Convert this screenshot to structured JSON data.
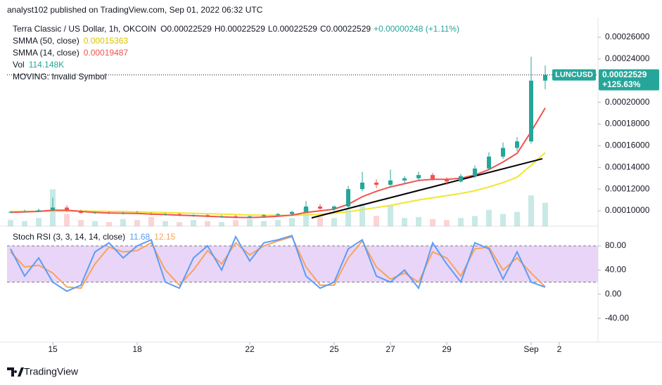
{
  "header": {
    "published": "analyst102 published on TradingView.com, Sep 01, 2022 06:32 UTC",
    "brand": "TradingView"
  },
  "chart_data": [
    {
      "type": "candlestick",
      "title": "Terra Classic / US Dollar, 1h, OKCOIN",
      "ohlc_legend": [
        {
          "label": "O",
          "value": "0.00022529"
        },
        {
          "label": "H",
          "value": "0.00022529"
        },
        {
          "label": "L",
          "value": "0.00022529"
        },
        {
          "label": "C",
          "value": "0.00022529"
        }
      ],
      "change": "+0.00000248 (+1.11%)",
      "notice": "MOVING: Invalid Symbol",
      "symbol": "LUNCUSD",
      "change_percent": "+125.63%",
      "x": [
        13.5,
        14,
        14.5,
        15,
        15.5,
        16,
        16.5,
        17,
        17.5,
        18,
        18.5,
        19,
        19.5,
        20,
        20.5,
        21,
        21.5,
        22,
        22.5,
        23,
        23.5,
        24,
        24.5,
        25,
        25.5,
        26,
        26.5,
        27,
        27.5,
        28,
        28.5,
        29,
        29.5,
        30,
        30.5,
        31,
        31.5,
        32,
        32.5
      ],
      "open": [
        9.85e-05,
        9.9e-05,
        9.95e-05,
        0.0001005,
        0.000103,
        0.0001,
        9.8e-05,
        9.85e-05,
        9.75e-05,
        9.8e-05,
        9.75e-05,
        9.65e-05,
        9.7e-05,
        9.55e-05,
        9.6e-05,
        9.45e-05,
        9.5e-05,
        9.4e-05,
        9.5e-05,
        9.6e-05,
        9.7e-05,
        9.9e-05,
        0.000104,
        0.000102,
        0.000104,
        0.00012,
        0.000126,
        0.000124,
        0.000128,
        0.00013,
        0.000133,
        0.000129,
        0.000127,
        0.000132,
        0.000139,
        0.00015,
        0.000158,
        0.000164,
        0.00022
      ],
      "high": [
        0.0001,
        0.000101,
        0.000102,
        0.000112,
        0.000105,
        0.000101,
        9.95e-05,
        9.95e-05,
        9.9e-05,
        0.0001,
        9.85e-05,
        9.8e-05,
        9.8e-05,
        9.7e-05,
        9.7e-05,
        9.6e-05,
        9.6e-05,
        9.55e-05,
        9.7e-05,
        9.8e-05,
        0.0001,
        0.000109,
        0.000106,
        0.000105,
        0.000123,
        0.000136,
        0.000129,
        0.000138,
        0.000132,
        0.000136,
        0.000135,
        0.000131,
        0.000134,
        0.000142,
        0.000154,
        0.000163,
        0.000168,
        0.000242,
        0.000234
      ],
      "low": [
        9.8e-05,
        9.85e-05,
        9.9e-05,
        9.95e-05,
        9.9e-05,
        9.75e-05,
        9.7e-05,
        9.7e-05,
        9.65e-05,
        9.7e-05,
        9.6e-05,
        9.55e-05,
        9.5e-05,
        9.45e-05,
        9.4e-05,
        9.35e-05,
        9.3e-05,
        9.3e-05,
        9.4e-05,
        9.5e-05,
        9.6e-05,
        9.8e-05,
        0.000101,
        0.0001,
        0.000103,
        0.000118,
        0.000121,
        0.000122,
        0.000125,
        0.000128,
        0.000128,
        0.000124,
        0.000126,
        0.00013,
        0.000138,
        0.000148,
        0.000155,
        0.000162,
        0.000212
      ],
      "close": [
        9.9e-05,
        9.95e-05,
        0.0001005,
        0.000103,
        0.0001,
        9.8e-05,
        9.85e-05,
        9.75e-05,
        9.8e-05,
        9.75e-05,
        9.65e-05,
        9.7e-05,
        9.55e-05,
        9.6e-05,
        9.45e-05,
        9.5e-05,
        9.4e-05,
        9.5e-05,
        9.6e-05,
        9.7e-05,
        9.9e-05,
        0.000104,
        0.000102,
        0.000104,
        0.00012,
        0.000126,
        0.000124,
        0.000128,
        0.00013,
        0.000133,
        0.000129,
        0.000127,
        0.000132,
        0.000139,
        0.00015,
        0.000158,
        0.000164,
        0.00022,
        0.00022529
      ],
      "up_color": "#26a69a",
      "down_color": "#ef5350",
      "series": [
        {
          "name": "SMMA (50, close)",
          "color": "#f2e52e",
          "values": [
            9.95e-05,
            9.95e-05,
            9.96e-05,
            9.98e-05,
            9.99e-05,
            9.98e-05,
            9.97e-05,
            9.95e-05,
            9.93e-05,
            9.9e-05,
            9.87e-05,
            9.84e-05,
            9.8e-05,
            9.77e-05,
            9.73e-05,
            9.7e-05,
            9.66e-05,
            9.62e-05,
            9.6e-05,
            9.58e-05,
            9.58e-05,
            9.62e-05,
            9.68e-05,
            9.78e-05,
            9.92e-05,
            0.000101,
            0.000103,
            0.000105,
            0.0001075,
            0.00011,
            0.000112,
            0.000114,
            0.000116,
            0.0001185,
            0.000122,
            0.000126,
            0.000131,
            0.000142,
            0.00015363
          ]
        },
        {
          "name": "SMMA (14, close)",
          "color": "#ef5350",
          "values": [
            9.85e-05,
            9.9e-05,
            9.95e-05,
            0.0001005,
            0.0001005,
            9.95e-05,
            9.85e-05,
            9.8e-05,
            9.78e-05,
            9.76e-05,
            9.7e-05,
            9.66e-05,
            9.6e-05,
            9.55e-05,
            9.5e-05,
            9.45e-05,
            9.4e-05,
            9.38e-05,
            9.42e-05,
            9.5e-05,
            9.6e-05,
            9.85e-05,
            0.0001,
            0.0001015,
            0.000106,
            0.000113,
            0.000118,
            0.000122,
            0.000125,
            0.000128,
            0.000129,
            0.000129,
            0.00013,
            0.000133,
            0.000138,
            0.000145,
            0.000153,
            0.000173,
            0.00019487
          ]
        }
      ],
      "volume": {
        "name": "Vol",
        "legend_value": "114.148K",
        "color": "#4caf50",
        "ylim": [
          0,
          1000
        ],
        "values": [
          30,
          25,
          40,
          180,
          60,
          30,
          25,
          20,
          35,
          30,
          45,
          25,
          20,
          30,
          25,
          20,
          30,
          35,
          25,
          30,
          40,
          90,
          45,
          40,
          80,
          110,
          50,
          100,
          40,
          45,
          35,
          30,
          40,
          50,
          80,
          60,
          70,
          150,
          114.148
        ]
      },
      "trendline": {
        "x": [
          24.2,
          32.4
        ],
        "values": [
          9.35e-05,
          0.000148
        ],
        "color": "#000000"
      },
      "xlim": [
        13.375,
        34.375
      ],
      "xticks": [
        15,
        18,
        22,
        25,
        27,
        29,
        {
          "value": 32,
          "label": "Sep"
        },
        {
          "value": 33,
          "label": "2"
        }
      ],
      "ylim": [
        8.58e-05,
        0.0002749
      ],
      "yticks": [
        {
          "value": 0.00026,
          "label": "0.00026000"
        },
        {
          "value": 0.00024,
          "label": "0.00024000"
        },
        {
          "value": 0.0002,
          "label": "0.00020000"
        },
        {
          "value": 0.00018,
          "label": "0.00018000"
        },
        {
          "value": 0.00016,
          "label": "0.00016000"
        },
        {
          "value": 0.00014,
          "label": "0.00014000"
        },
        {
          "value": 0.00012,
          "label": "0.00012000"
        },
        {
          "value": 0.0001,
          "label": "0.00010000"
        }
      ]
    },
    {
      "type": "line",
      "title": "Stoch RSI (3, 3, 14, 14, close)",
      "series": [
        {
          "color": "#5b9cf6",
          "values": [
            75,
            30,
            60,
            20,
            5,
            15,
            70,
            85,
            60,
            80,
            90,
            20,
            10,
            60,
            80,
            40,
            95,
            55,
            85,
            90,
            97,
            30,
            10,
            20,
            75,
            90,
            30,
            20,
            40,
            10,
            85,
            50,
            20,
            85,
            75,
            25,
            70,
            20,
            11.68
          ]
        },
        {
          "color": "#f7a35c",
          "values": [
            70,
            45,
            48,
            35,
            12,
            10,
            50,
            78,
            70,
            72,
            85,
            40,
            15,
            40,
            72,
            50,
            85,
            65,
            80,
            88,
            95,
            45,
            15,
            15,
            60,
            88,
            45,
            25,
            35,
            20,
            70,
            60,
            30,
            75,
            78,
            40,
            60,
            35,
            12.15
          ]
        }
      ],
      "band": [
        20,
        80
      ],
      "band_color": "#e9d5f7",
      "ylim": [
        -77,
        109
      ],
      "yticks": [
        {
          "value": 80,
          "label": "80.00"
        },
        {
          "value": 40,
          "label": "40.00"
        },
        {
          "value": 0,
          "label": "0.00"
        },
        {
          "value": -40,
          "label": "-40.00"
        }
      ]
    }
  ]
}
